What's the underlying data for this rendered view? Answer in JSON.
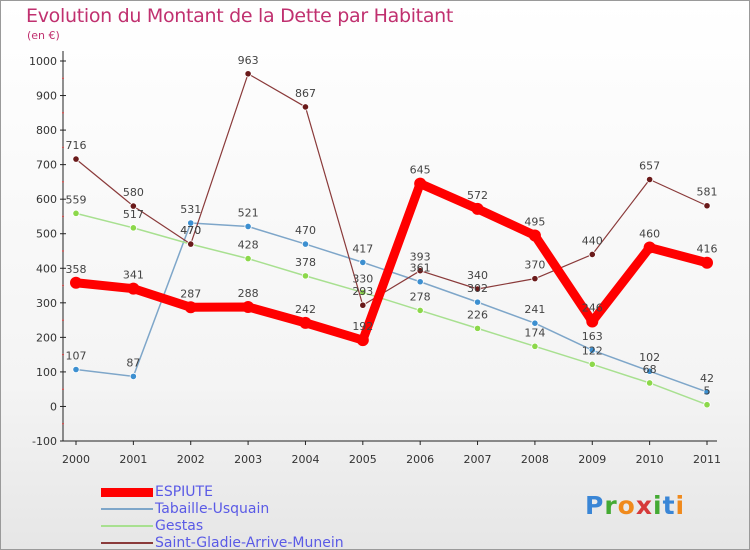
{
  "title": "Evolution du Montant de la Dette par Habitant",
  "subtitle": "(en €)",
  "brand": {
    "letters": [
      {
        "ch": "P",
        "color": "#3a86d6"
      },
      {
        "ch": "r",
        "color": "#44aa33"
      },
      {
        "ch": "o",
        "color": "#f08a1c"
      },
      {
        "ch": "x",
        "color": "#d63a3a"
      },
      {
        "ch": "i",
        "color": "#44aa33"
      },
      {
        "ch": "t",
        "color": "#3a86d6"
      },
      {
        "ch": "i",
        "color": "#f08a1c"
      }
    ]
  },
  "chart_data": {
    "type": "line",
    "x": [
      "2000",
      "2001",
      "2002",
      "2003",
      "2004",
      "2005",
      "2006",
      "2007",
      "2008",
      "2009",
      "2010",
      "2011"
    ],
    "ylim": [
      -100,
      1000
    ],
    "yticks": [
      "-100",
      "0",
      "100",
      "200",
      "300",
      "400",
      "500",
      "600",
      "700",
      "800",
      "900",
      "1000"
    ],
    "grid": false,
    "legend_position": "bottom-left",
    "series": [
      {
        "name": "ESPIUTE",
        "color": "#ff0000",
        "marker": "#ff0000",
        "width": 9,
        "values": [
          358,
          341,
          287,
          288,
          242,
          192,
          645,
          572,
          495,
          246,
          460,
          416
        ]
      },
      {
        "name": "Tabaille-Usquain",
        "color": "#7ea6c9",
        "marker": "#3c8fd0",
        "width": 1.5,
        "values": [
          107,
          87,
          531,
          521,
          470,
          417,
          361,
          302,
          241,
          163,
          102,
          42
        ]
      },
      {
        "name": "Gestas",
        "color": "#a8e090",
        "marker": "#8cd84a",
        "width": 1.5,
        "values": [
          559,
          517,
          470,
          428,
          378,
          330,
          278,
          226,
          174,
          122,
          68,
          5
        ]
      },
      {
        "name": "Saint-Gladie-Arrive-Munein",
        "color": "#8a3a3a",
        "marker": "#6a1a1a",
        "width": 1.2,
        "values": [
          716,
          580,
          470,
          963,
          867,
          293,
          393,
          340,
          370,
          440,
          657,
          581
        ]
      }
    ]
  }
}
